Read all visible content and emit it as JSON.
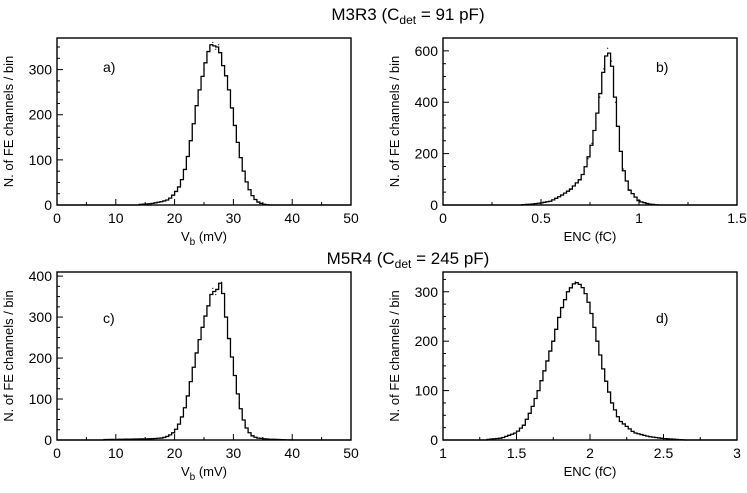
{
  "figure": {
    "row_titles": [
      {
        "main": "M3R3 (C",
        "sub": "det",
        "tail": " = 91 pF)"
      },
      {
        "main": "M5R4 (C",
        "sub": "det",
        "tail": " = 245 pF)"
      }
    ]
  },
  "chart_data": [
    {
      "type": "histogram",
      "panel": "a)",
      "title": "",
      "xlabel": {
        "main": "V",
        "sub": "b",
        "tail": "  (mV)"
      },
      "ylabel": "N. of FE channels / bin",
      "xlim": [
        0,
        50
      ],
      "ylim": [
        0,
        370
      ],
      "xticks": [
        0,
        10,
        20,
        30,
        40,
        50
      ],
      "yticks": [
        0,
        100,
        200,
        300
      ],
      "x": [
        14,
        16,
        18,
        19,
        20,
        21,
        22,
        23,
        24,
        25,
        25.5,
        26,
        26.5,
        27,
        27.5,
        28,
        29,
        30,
        31,
        32,
        33,
        34,
        35,
        36
      ],
      "values": [
        1,
        3,
        8,
        12,
        25,
        45,
        90,
        160,
        240,
        300,
        330,
        350,
        360,
        345,
        355,
        320,
        275,
        195,
        120,
        60,
        25,
        8,
        2,
        0
      ]
    },
    {
      "type": "histogram",
      "panel": "b)",
      "title": "",
      "xlabel": {
        "main": "ENC  (fC)",
        "sub": "",
        "tail": ""
      },
      "ylabel": "N. of FE channels / bin",
      "xlim": [
        0,
        1.5
      ],
      "ylim": [
        0,
        650
      ],
      "xticks": [
        0,
        0.5,
        1,
        1.5
      ],
      "yticks": [
        0,
        200,
        400,
        600
      ],
      "x": [
        0.4,
        0.45,
        0.5,
        0.55,
        0.6,
        0.65,
        0.7,
        0.72,
        0.74,
        0.76,
        0.78,
        0.8,
        0.82,
        0.84,
        0.86,
        0.88,
        0.9,
        0.92,
        0.95,
        1.0,
        1.05,
        1.1
      ],
      "values": [
        1,
        3,
        8,
        15,
        35,
        60,
        100,
        130,
        180,
        240,
        320,
        420,
        530,
        610,
        560,
        400,
        250,
        140,
        60,
        15,
        4,
        0
      ]
    },
    {
      "type": "histogram",
      "panel": "c)",
      "title": "",
      "xlabel": {
        "main": "V",
        "sub": "b",
        "tail": "  (mV)"
      },
      "ylabel": "N. of FE channels / bin",
      "xlim": [
        0,
        50
      ],
      "ylim": [
        0,
        410
      ],
      "xticks": [
        0,
        10,
        20,
        30,
        40,
        50
      ],
      "yticks": [
        0,
        100,
        200,
        300,
        400
      ],
      "x": [
        8,
        12,
        16,
        18,
        19,
        20,
        21,
        22,
        23,
        24,
        25,
        26,
        26.5,
        27,
        27.5,
        28,
        28.5,
        29,
        30,
        31,
        32,
        33,
        34,
        36,
        40
      ],
      "values": [
        1,
        2,
        3,
        5,
        10,
        20,
        45,
        90,
        160,
        230,
        290,
        340,
        370,
        355,
        380,
        385,
        330,
        270,
        180,
        90,
        35,
        12,
        5,
        2,
        0
      ]
    },
    {
      "type": "histogram",
      "panel": "d)",
      "title": "",
      "xlabel": {
        "main": "ENC  (fC)",
        "sub": "",
        "tail": ""
      },
      "ylabel": "N. of FE channels / bin",
      "xlim": [
        1,
        3
      ],
      "ylim": [
        0,
        340
      ],
      "xticks": [
        1,
        1.5,
        2,
        2.5,
        3
      ],
      "yticks": [
        0,
        100,
        200,
        300
      ],
      "x": [
        1.3,
        1.4,
        1.5,
        1.55,
        1.6,
        1.65,
        1.7,
        1.75,
        1.8,
        1.85,
        1.9,
        1.93,
        1.96,
        2.0,
        2.05,
        2.1,
        2.15,
        2.2,
        2.3,
        2.4,
        2.5,
        2.6,
        2.65
      ],
      "values": [
        1,
        4,
        15,
        30,
        60,
        100,
        150,
        200,
        260,
        300,
        320,
        315,
        305,
        270,
        200,
        130,
        75,
        40,
        15,
        7,
        3,
        1,
        0
      ]
    }
  ]
}
